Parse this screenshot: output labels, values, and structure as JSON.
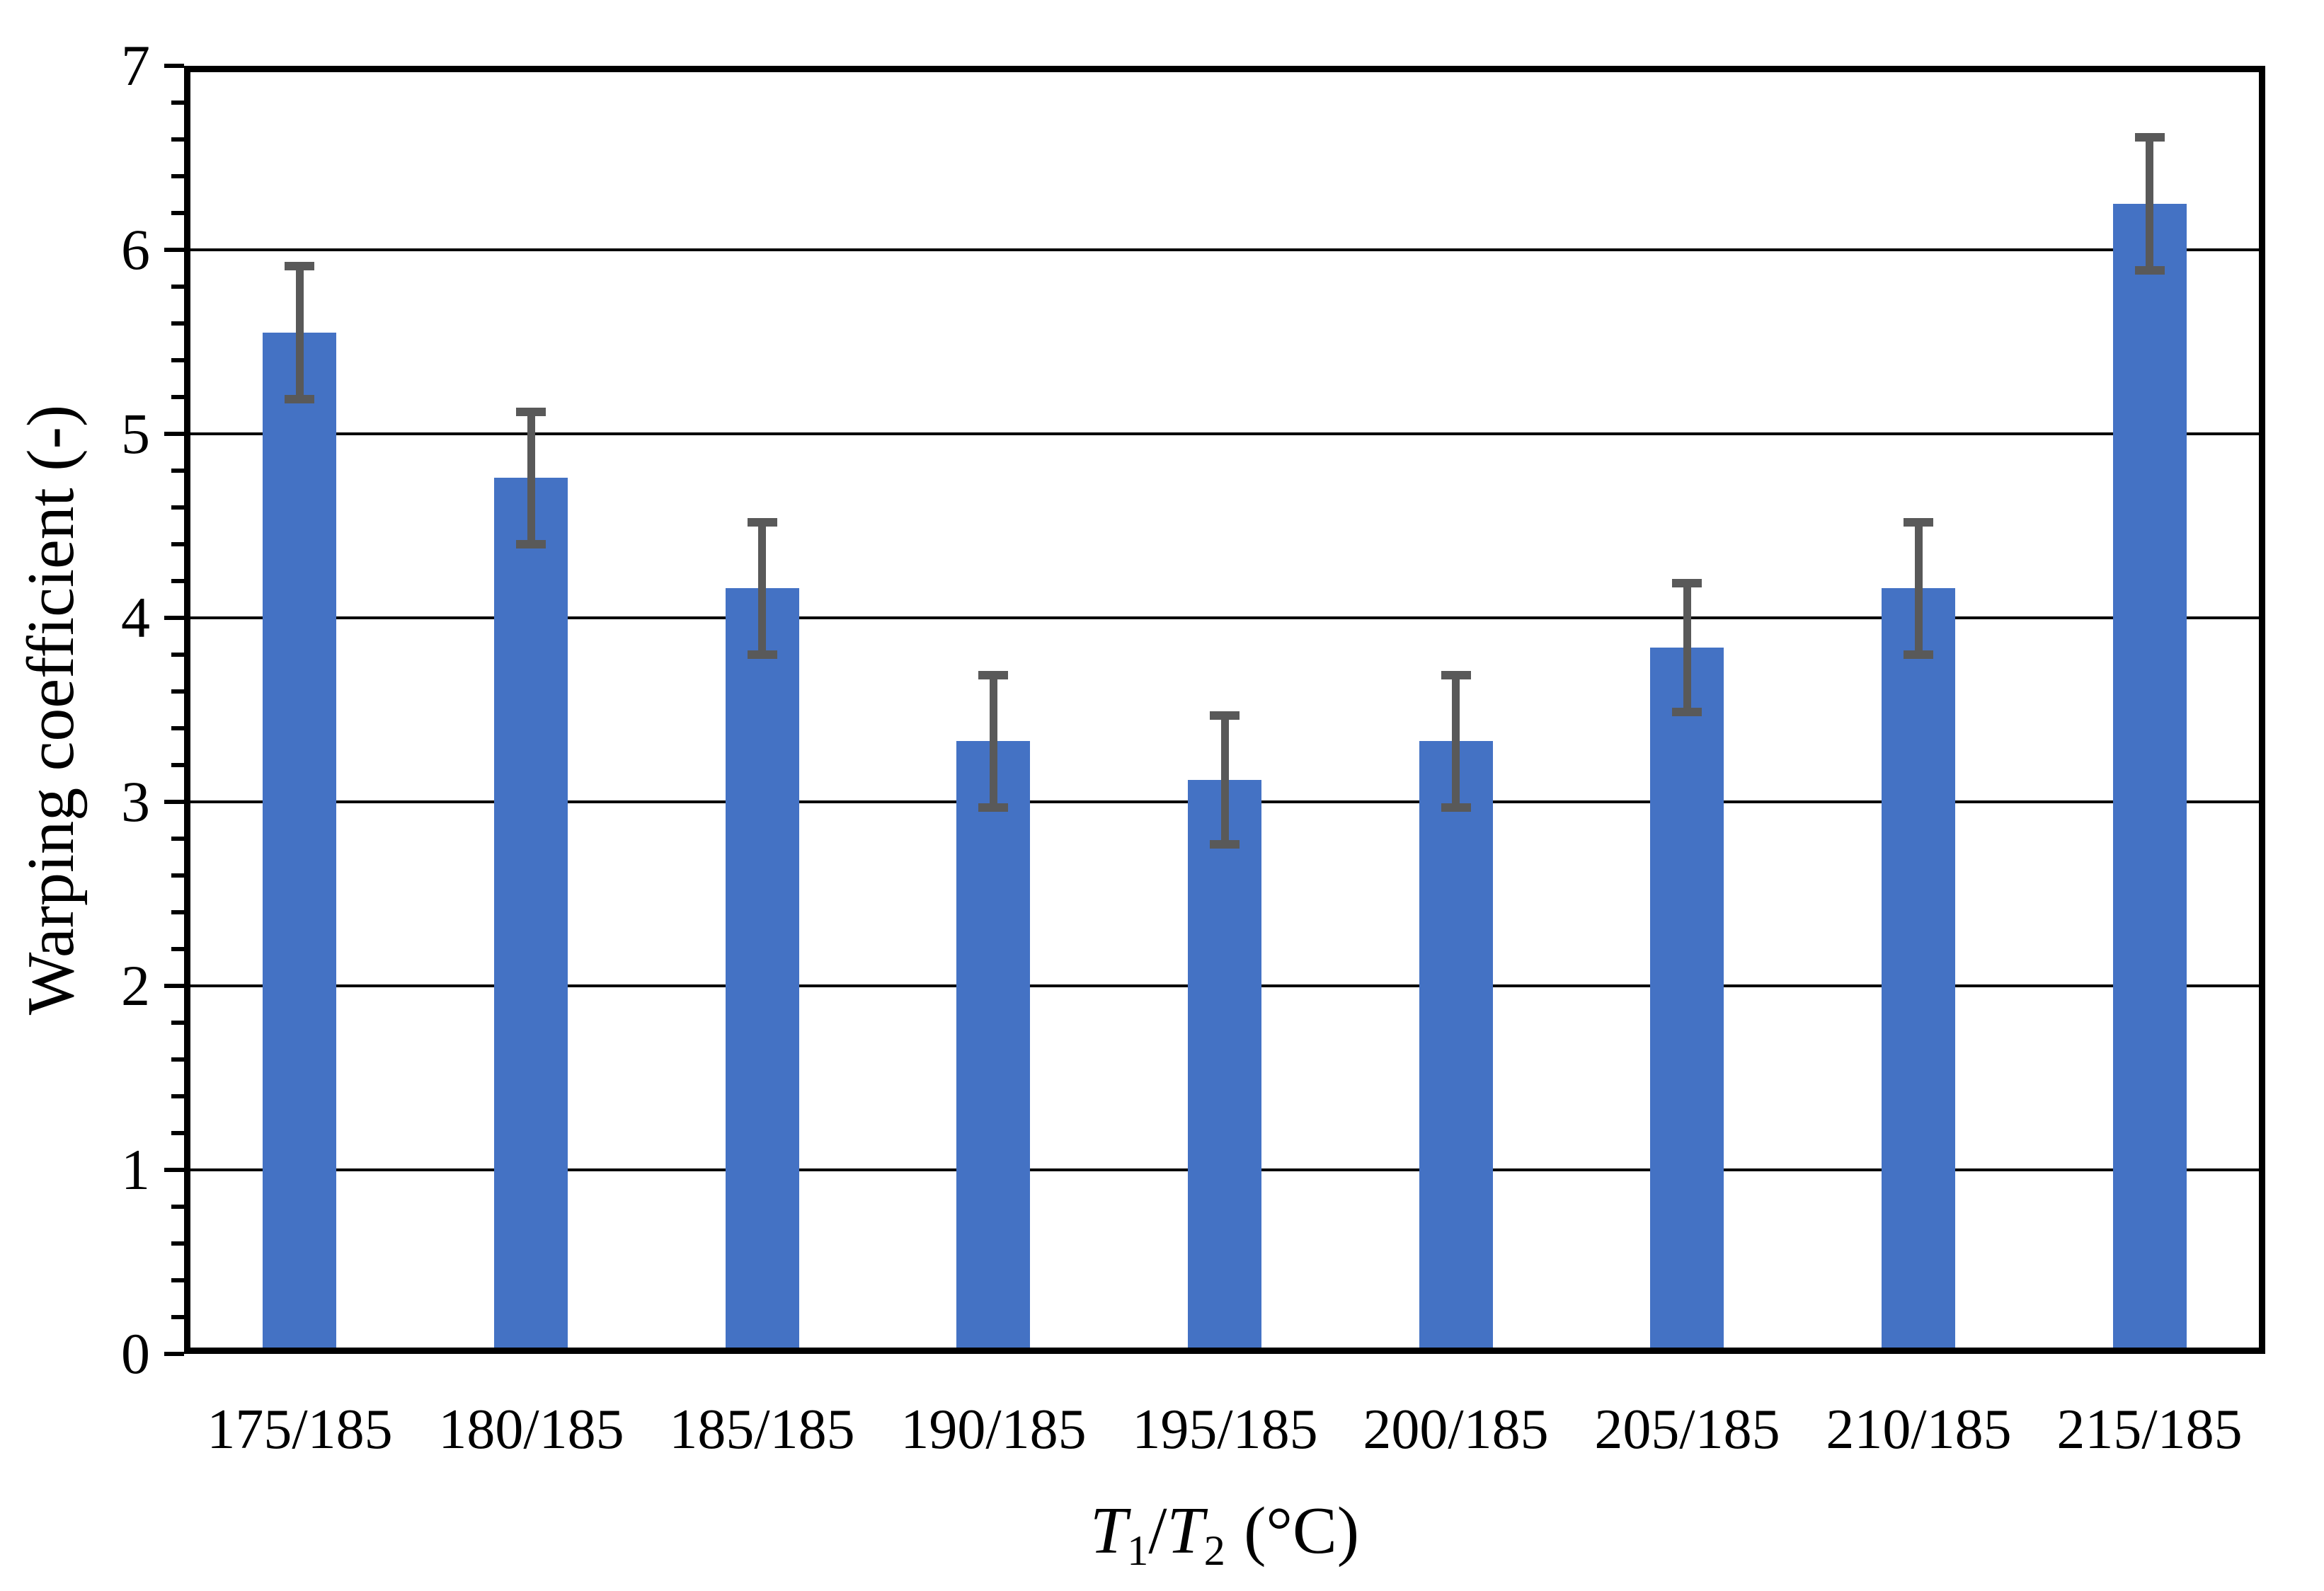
{
  "figure": {
    "background_color": "#ffffff"
  },
  "chart_data": {
    "type": "bar",
    "title": "",
    "categories": [
      "175/185",
      "180/185",
      "185/185",
      "190/185",
      "195/185",
      "200/185",
      "205/185",
      "210/185",
      "215/185"
    ],
    "values": [
      5.55,
      4.76,
      4.16,
      3.33,
      3.12,
      3.33,
      3.84,
      4.16,
      6.25
    ],
    "error_bars": [
      0.36,
      0.36,
      0.36,
      0.36,
      0.35,
      0.36,
      0.35,
      0.36,
      0.36
    ],
    "xlabel": "T1/T2 (°C)",
    "xlabel_parts": {
      "t1": "T",
      "sub1": "1",
      "slash": "/",
      "t2": "T",
      "sub2": "2",
      "units": "(°C)"
    },
    "ylabel": "Warping coefficient (-)",
    "ylim": [
      0,
      7
    ],
    "y_major_step": 1,
    "y_minor_step": 0.2,
    "y_tick_labels": [
      "0",
      "1",
      "2",
      "3",
      "4",
      "5",
      "6",
      "7"
    ],
    "grid": "horizontal-major",
    "legend": "none",
    "bar_color": "#4472C4",
    "error_bar_color": "#595959",
    "axis_color": "#000000"
  }
}
